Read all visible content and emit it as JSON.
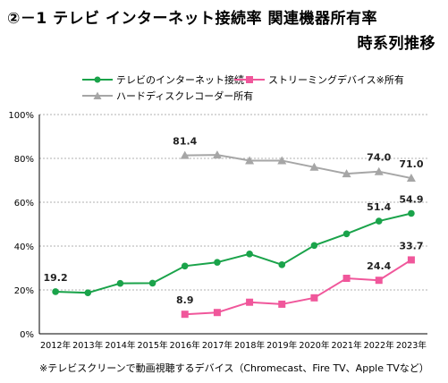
{
  "title": {
    "line1": "②－1  テレビ インターネット接続率  関連機器所有率",
    "line2": "時系列推移"
  },
  "footnote": "※テレビスクリーンで動画視聴するデバイス（Chromecast、Fire TV、Apple TVなど）",
  "chart_data": {
    "type": "line",
    "categories": [
      "2012年",
      "2013年",
      "2014年",
      "2015年",
      "2016年",
      "2017年",
      "2018年",
      "2019年",
      "2020年",
      "2021年",
      "2022年",
      "2023年"
    ],
    "ylim": [
      0,
      100
    ],
    "yticks": [
      "0%",
      "20%",
      "40%",
      "60%",
      "80%",
      "100%"
    ],
    "grid": "horizontal dashed",
    "legend_position": "top-left",
    "series": [
      {
        "name": "テレビのインターネット接続",
        "color": "#1aa34a",
        "marker": "circle",
        "values": [
          19.2,
          18.7,
          23.0,
          23.1,
          30.9,
          32.6,
          36.4,
          31.5,
          40.3,
          45.6,
          51.4,
          54.9
        ],
        "labels": {
          "0": "19.2",
          "10": "51.4",
          "11": "54.9"
        }
      },
      {
        "name": "ストリーミングデバイス※所有",
        "color": "#f0579b",
        "marker": "square",
        "values": [
          null,
          null,
          null,
          null,
          8.9,
          9.7,
          14.4,
          13.5,
          16.4,
          25.3,
          24.4,
          33.7
        ],
        "labels": {
          "4": "8.9",
          "10": "24.4",
          "11": "33.7"
        }
      },
      {
        "name": "ハードディスクレコーダー所有",
        "color": "#a6a6a6",
        "marker": "triangle",
        "values": [
          null,
          null,
          null,
          null,
          81.4,
          81.6,
          79.0,
          79.0,
          76.0,
          73.0,
          74.0,
          71.0
        ],
        "labels": {
          "4": "81.4",
          "10": "74.0",
          "11": "71.0"
        }
      }
    ]
  }
}
